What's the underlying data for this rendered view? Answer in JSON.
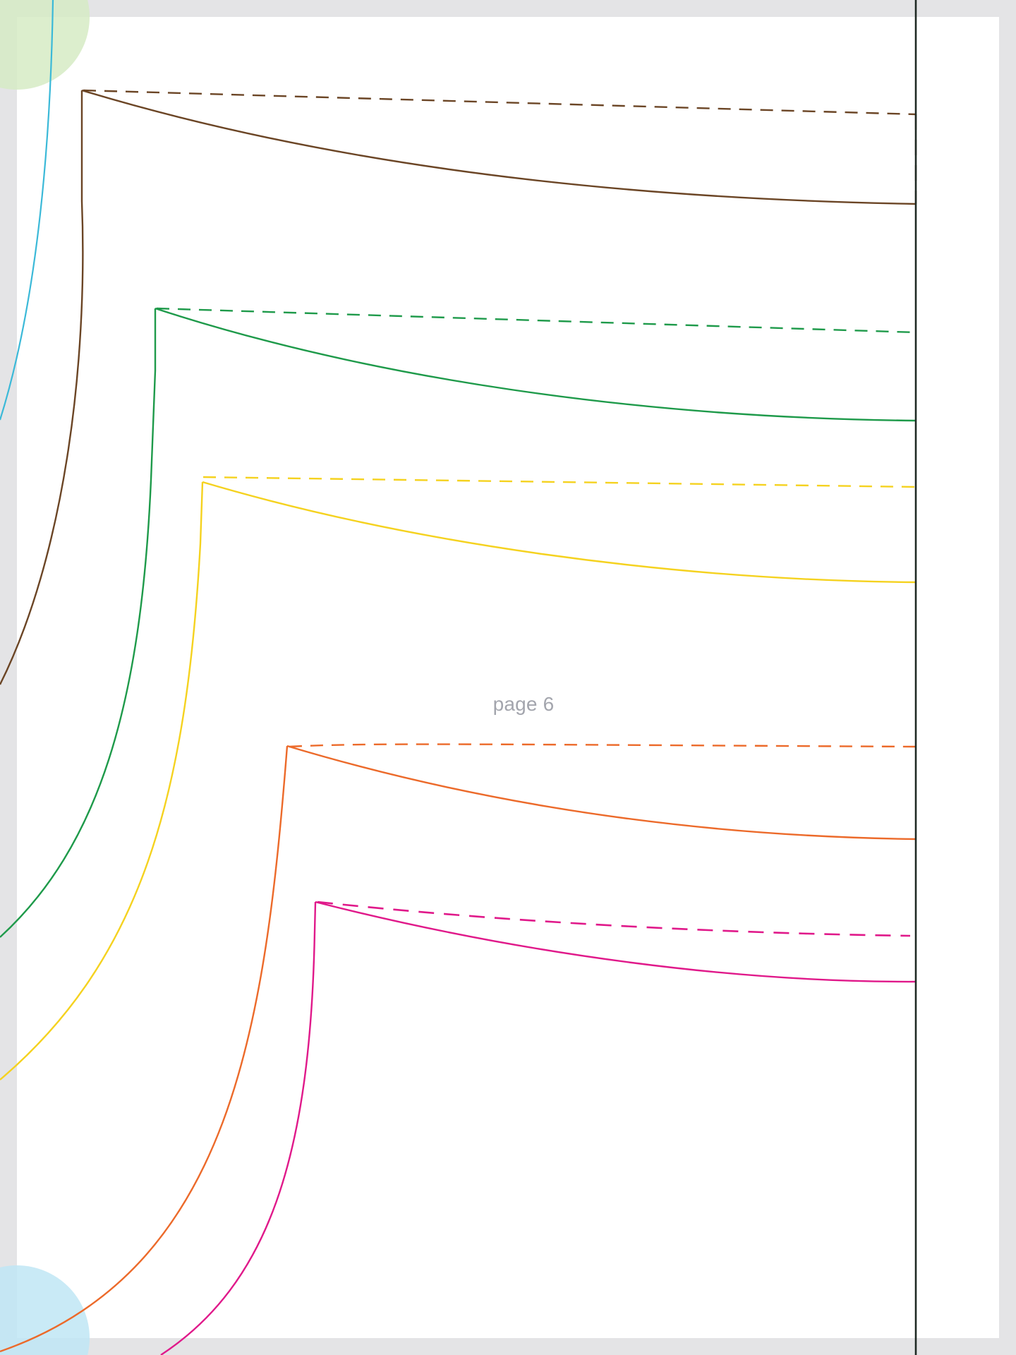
{
  "page": {
    "label": "page 6"
  },
  "colors": {
    "frame": "#e4e4e6",
    "paper": "#ffffff",
    "fold_line": "#1f2a24",
    "size_brown": "#6b4525",
    "size_green": "#1e9a4a",
    "size_yellow": "#f5d21f",
    "size_orange": "#ec6a2a",
    "size_magenta": "#e0198a",
    "size_cyan": "#3bb9d8",
    "corner_mark_green": "#d6ebc4",
    "corner_mark_blue": "#bfe6f4"
  },
  "pattern": {
    "fold_line": "solid",
    "pieces": [
      {
        "name": "brown",
        "color_key": "size_brown"
      },
      {
        "name": "green",
        "color_key": "size_green"
      },
      {
        "name": "yellow",
        "color_key": "size_yellow"
      },
      {
        "name": "orange",
        "color_key": "size_orange"
      },
      {
        "name": "magenta",
        "color_key": "size_magenta"
      },
      {
        "name": "cyan",
        "color_key": "size_cyan"
      }
    ]
  }
}
